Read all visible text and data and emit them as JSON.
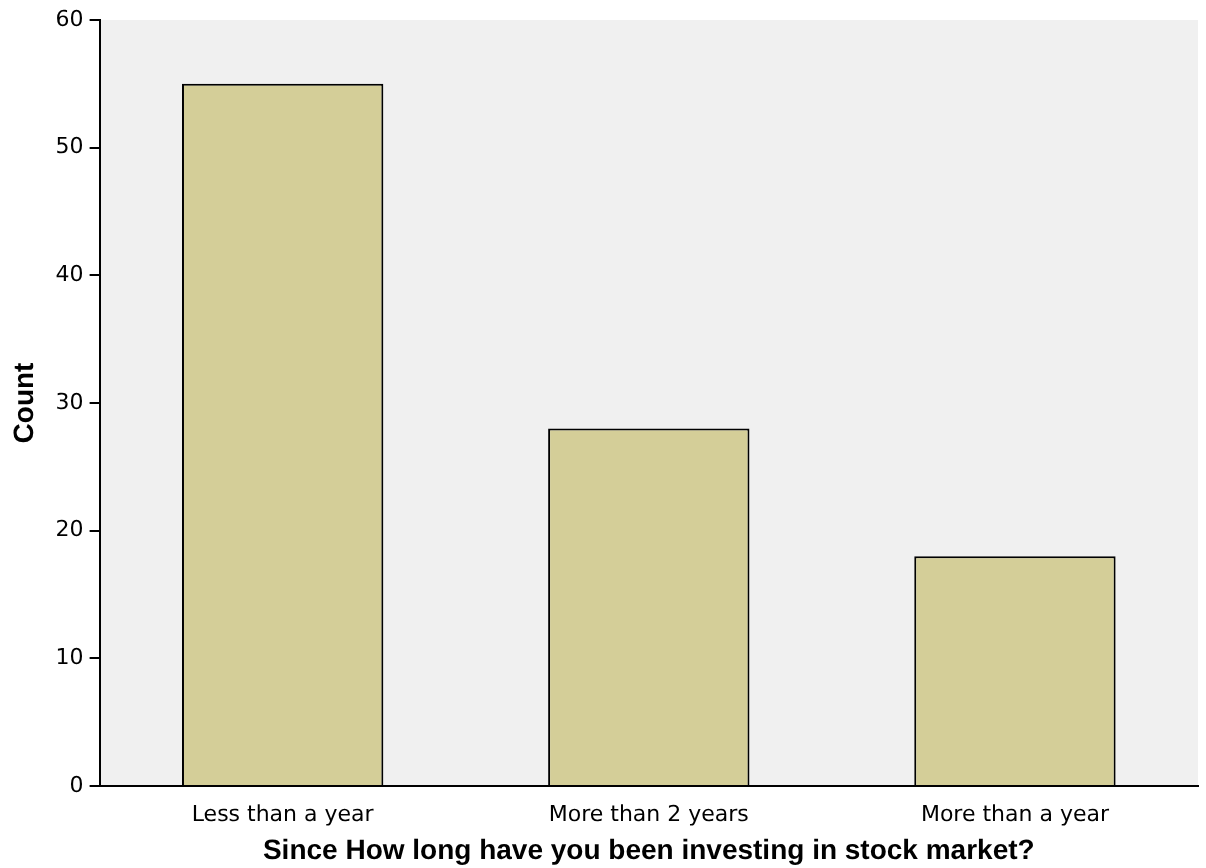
{
  "chart_data": {
    "type": "bar",
    "xlabel": "Since How long have you been investing in stock market?",
    "ylabel": "Count",
    "categories": [
      "Less than a year",
      "More than 2 years",
      "More than a year"
    ],
    "values": [
      55,
      28,
      18
    ],
    "color": "#d4ce98",
    "ylim": [
      0,
      60
    ],
    "yticks": [
      0,
      10,
      20,
      30,
      40,
      50,
      60
    ],
    "grid": false,
    "legend": false
  }
}
